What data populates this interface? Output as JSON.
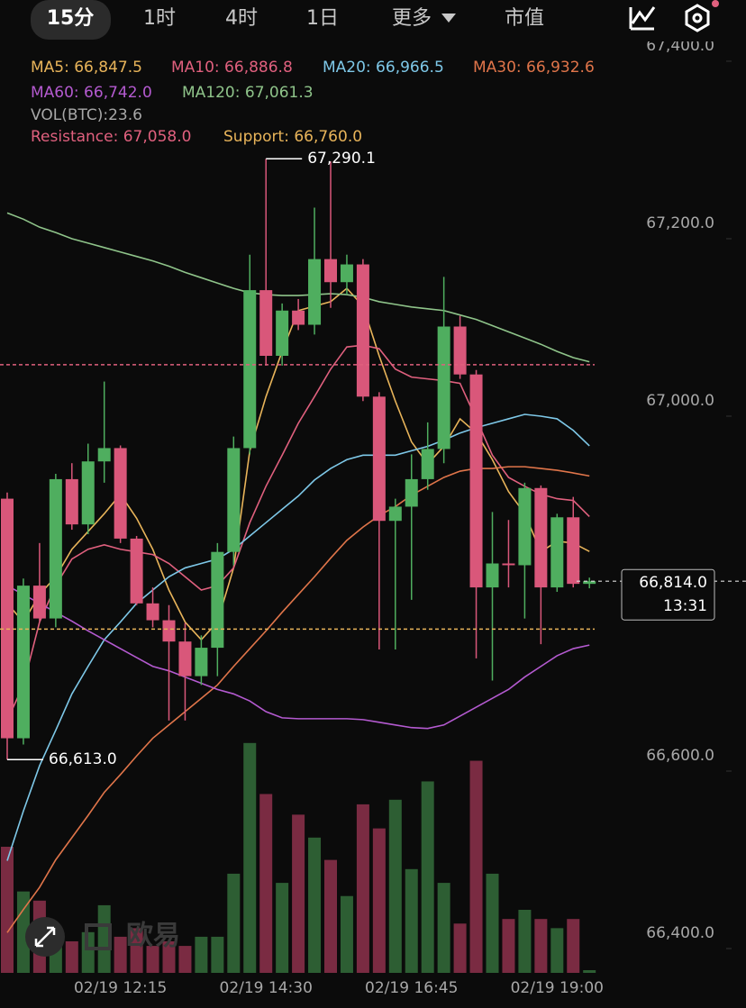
{
  "tabs": [
    "15分",
    "1时",
    "4时",
    "1日",
    "更多",
    "市值"
  ],
  "chart_data": {
    "type": "candlestick",
    "categories": [
      null,
      null,
      null,
      null,
      null,
      null,
      null,
      "02/19 12:15",
      null,
      null,
      null,
      null,
      null,
      null,
      null,
      null,
      "02/19 14:30",
      null,
      null,
      null,
      null,
      null,
      null,
      null,
      null,
      "02/19 16:45",
      null,
      null,
      null,
      null,
      null,
      null,
      null,
      null,
      "02/19 19:00",
      null,
      null
    ],
    "open": [
      66907,
      66637,
      66809,
      66772,
      66929,
      66878,
      66949,
      66964,
      66862,
      66789,
      66770,
      66746,
      66707,
      66739,
      66847,
      66964,
      67142,
      67068,
      67119,
      67103,
      67177,
      67151,
      67171,
      67022,
      66882,
      66898,
      66929,
      66963,
      67101,
      67047,
      66807,
      66834,
      66832,
      66919,
      66807,
      66886,
      66811
    ],
    "high": [
      66914,
      66817,
      66857,
      66935,
      66947,
      66969,
      67039,
      66967,
      66865,
      66807,
      66787,
      66767,
      66753,
      66857,
      66977,
      67182,
      67290.1,
      67127,
      67132,
      67235,
      67287,
      67182,
      67177,
      67027,
      66907,
      66957,
      66993,
      67157,
      67113,
      67052,
      66892,
      66883,
      66925,
      66922,
      66890,
      66909,
      66818
    ],
    "low": [
      66613.0,
      66630,
      66769,
      66762,
      66872,
      66867,
      66925,
      66857,
      66787,
      66762,
      66657,
      66657,
      66697,
      66707,
      66832,
      66957,
      67057,
      67057,
      67097,
      67092,
      67122,
      67137,
      67017,
      66737,
      66737,
      66793,
      66917,
      66947,
      67042,
      66727,
      66702,
      66807,
      66772,
      66743,
      66802,
      66807,
      66806
    ],
    "close": [
      66637,
      66809,
      66772,
      66929,
      66878,
      66949,
      66964,
      66862,
      66789,
      66770,
      66746,
      66707,
      66739,
      66847,
      66964,
      67142,
      67068,
      67119,
      67103,
      67177,
      67151,
      67171,
      67022,
      66882,
      66898,
      66929,
      66963,
      67101,
      67047,
      66807,
      66834,
      66832,
      66919,
      66807,
      66886,
      66811,
      66814
    ],
    "volume": [
      1100,
      710,
      630,
      315,
      275,
      355,
      590,
      315,
      390,
      235,
      275,
      235,
      315,
      315,
      865,
      2005,
      1560,
      785,
      1380,
      1180,
      985,
      670,
      1470,
      1260,
      1510,
      905,
      1670,
      785,
      430,
      1850,
      865,
      470,
      550,
      470,
      390,
      470,
      23.6
    ],
    "volume_label": "VOL(BTC):23.6",
    "up_color": "#4fae5f",
    "down_color": "#d9577a",
    "vol_up_color": "#2d5e33",
    "vol_down_color": "#7a2b42",
    "series": [
      {
        "name": "MA5: 66,847.5",
        "color": "#e8b45a",
        "values": [
          66789,
          66768,
          66799,
          66819,
          66850,
          66870,
          66890,
          66912,
          66885,
          66850,
          66804,
          66768,
          66748,
          66768,
          66829,
          66961,
          67022,
          67073,
          67119,
          67124,
          67129,
          67144,
          67124,
          67068,
          67017,
          66971,
          66946,
          66966,
          66997,
          66981,
          66951,
          66915,
          66890,
          66847,
          66859,
          66857,
          66847.5
        ]
      },
      {
        "name": "MA10: 66,886.8",
        "color": "#e0607e",
        "values": [
          66657,
          66697,
          66768,
          66809,
          66839,
          66850,
          66855,
          66850,
          66847,
          66844,
          66834,
          66819,
          66804,
          66809,
          66829,
          66880,
          66921,
          66956,
          66992,
          67022,
          67053,
          67078,
          67080,
          67076,
          67053,
          67044,
          67042,
          67040,
          67037,
          66997,
          66956,
          66931,
          66921,
          66912,
          66907,
          66905,
          66886.8
        ]
      },
      {
        "name": "MA20: 66,966.5",
        "color": "#7ec8e8",
        "values": [
          66499,
          66555,
          66606,
          66646,
          66687,
          66718,
          66748,
          66768,
          66789,
          66804,
          66819,
          66829,
          66834,
          66839,
          66850,
          66865,
          66880,
          66895,
          66910,
          66928,
          66941,
          66951,
          66956,
          66956,
          66956,
          66961,
          66966,
          66973,
          66981,
          66987,
          66992,
          66997,
          67002,
          67000,
          66997,
          66984,
          66966.5
        ]
      },
      {
        "name": "MA30: 66,932.6",
        "color": "#e0754a",
        "values": [
          66418,
          66444,
          66469,
          66500,
          66525,
          66550,
          66576,
          66596,
          66617,
          66637,
          66652,
          66667,
          66682,
          66697,
          66718,
          66738,
          66758,
          66779,
          66799,
          66819,
          66840,
          66860,
          66875,
          66888,
          66898,
          66911,
          66921,
          66931,
          66938,
          66941,
          66941,
          66943,
          66943,
          66941,
          66939,
          66936,
          66932.6
        ]
      },
      {
        "name": "MA60: 66,742.0",
        "color": "#b45ad0",
        "values": [
          66809,
          66799,
          66789,
          66779,
          66769,
          66758,
          66748,
          66738,
          66728,
          66718,
          66713,
          66706,
          66699,
          66692,
          66687,
          66679,
          66667,
          66660,
          66659,
          66659,
          66659,
          66659,
          66658,
          66655,
          66652,
          66649,
          66648,
          66652,
          66662,
          66672,
          66682,
          66692,
          66706,
          66718,
          66730,
          66738,
          66742.0
        ]
      },
      {
        "name": "MA120: 67,061.3",
        "color": "#8fc48a",
        "values": [
          67229,
          67222,
          67213,
          67207,
          67200,
          67195,
          67190,
          67185,
          67180,
          67175,
          67169,
          67162,
          67156,
          67150,
          67144,
          67139,
          67137,
          67136,
          67136,
          67137,
          67138,
          67137,
          67134,
          67129,
          67126,
          67123,
          67121,
          67119,
          67114,
          67109,
          67102,
          67095,
          67088,
          67081,
          67073,
          67066,
          67061.3
        ]
      }
    ],
    "resistance": {
      "value": 67058,
      "label": "Resistance: 67,058.0",
      "color": "#e0607e"
    },
    "support": {
      "value": 66760,
      "label": "Support: 66,760.0",
      "color": "#e8b45a"
    },
    "last_price": {
      "value": 66814,
      "label": "66,814.0",
      "countdown": "13:31"
    },
    "annotations": [
      {
        "value": 67290.1,
        "label": "67,290.1"
      },
      {
        "value": 66613.0,
        "label": "66,613.0"
      }
    ],
    "ylim": [
      66333,
      67469
    ],
    "yticks": [
      {
        "value": 67400,
        "label": "67,400.0"
      },
      {
        "value": 67200,
        "label": "67,200.0"
      },
      {
        "value": 67000,
        "label": "67,000.0"
      },
      {
        "value": 66600,
        "label": "66,600.0"
      },
      {
        "value": 66400,
        "label": "66,400.0"
      }
    ],
    "vol_ylim": [
      0,
      2200
    ],
    "watermark": "欧易"
  }
}
